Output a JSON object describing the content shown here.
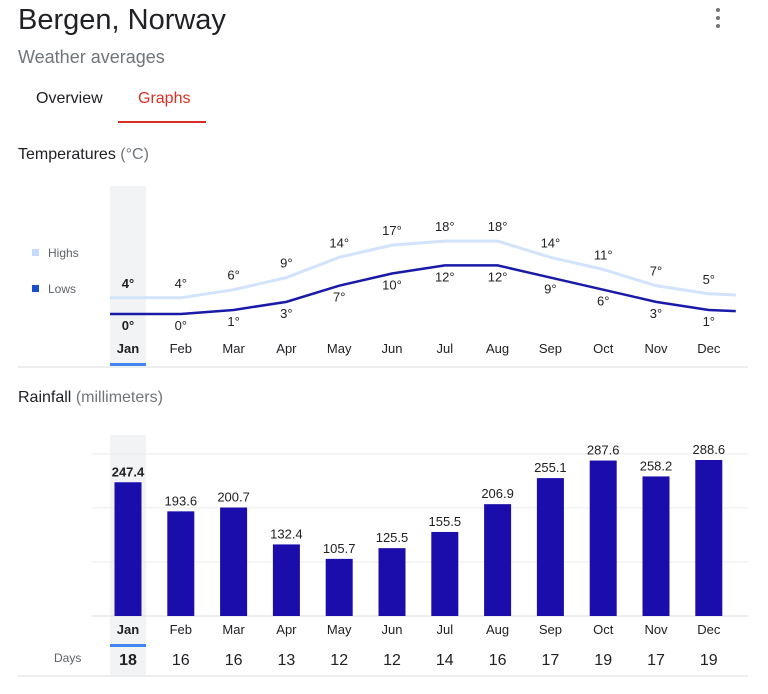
{
  "header": {
    "title": "Bergen, Norway",
    "subtitle": "Weather averages"
  },
  "tabs": [
    {
      "label": "Overview",
      "active": false
    },
    {
      "label": "Graphs",
      "active": true
    }
  ],
  "temperature": {
    "title": "Temperatures",
    "unit": "(°C)",
    "legend": {
      "highs": "Highs",
      "lows": "Lows"
    },
    "colors": {
      "highs": "#d2e3fc",
      "lows": "#1a1aa8",
      "legend_highs": "#c6dafc",
      "legend_lows": "#1a4fc9"
    }
  },
  "rainfall": {
    "title": "Rainfall",
    "unit": "(millimeters)",
    "days_label": "Days",
    "days": [
      18,
      16,
      16,
      13,
      12,
      12,
      14,
      16,
      17,
      19,
      17,
      19
    ],
    "bar_color": "#1a0dab"
  },
  "selected_month": "Jan",
  "accent_color": "#4285f4",
  "chart_data": [
    {
      "type": "line",
      "categories": [
        "Jan",
        "Feb",
        "Mar",
        "Apr",
        "May",
        "Jun",
        "Jul",
        "Aug",
        "Sep",
        "Oct",
        "Nov",
        "Dec"
      ],
      "series": [
        {
          "name": "Highs",
          "values": [
            4,
            4,
            6,
            9,
            14,
            17,
            18,
            18,
            14,
            11,
            7,
            5
          ]
        },
        {
          "name": "Lows",
          "values": [
            0,
            0,
            1,
            3,
            7,
            10,
            12,
            12,
            9,
            6,
            3,
            1
          ]
        }
      ],
      "value_labels": {
        "highs": [
          "4°",
          "4°",
          "6°",
          "9°",
          "14°",
          "17°",
          "18°",
          "18°",
          "14°",
          "11°",
          "7°",
          "5°"
        ],
        "lows": [
          "0°",
          "0°",
          "1°",
          "3°",
          "7°",
          "10°",
          "12°",
          "12°",
          "9°",
          "6°",
          "3°",
          "1°"
        ]
      },
      "ylabel": "°C",
      "legend_position": "left"
    },
    {
      "type": "bar",
      "categories": [
        "Jan",
        "Feb",
        "Mar",
        "Apr",
        "May",
        "Jun",
        "Jul",
        "Aug",
        "Sep",
        "Oct",
        "Nov",
        "Dec"
      ],
      "values": [
        247.4,
        193.6,
        200.7,
        132.4,
        105.7,
        125.5,
        155.5,
        206.9,
        255.1,
        287.6,
        258.2,
        288.6
      ],
      "value_labels": [
        "247.4",
        "193.6",
        "200.7",
        "132.4",
        "105.7",
        "125.5",
        "155.5",
        "206.9",
        "255.1",
        "287.6",
        "258.2",
        "288.6"
      ],
      "ylabel": "millimeters",
      "ylim": [
        0,
        300
      ],
      "grid": true
    }
  ]
}
